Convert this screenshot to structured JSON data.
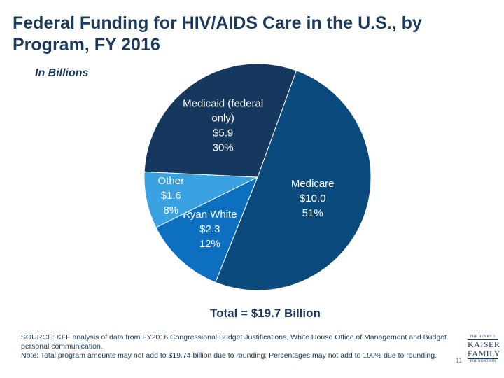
{
  "chart_data": {
    "type": "pie",
    "title": "Federal Funding for HIV/AIDS Care in the U.S., by Program, FY 2016",
    "subtitle": "In Billions",
    "slices": [
      {
        "name": "Medicare",
        "value": 10.0,
        "value_label": "$10.0",
        "percent_label": "51%",
        "color": "#0b4a7d"
      },
      {
        "name": "Ryan White",
        "value": 2.3,
        "value_label": "$2.3",
        "percent_label": "12%",
        "color": "#0c6fc0"
      },
      {
        "name": "Other",
        "value": 1.6,
        "value_label": "$1.6",
        "percent_label": "8%",
        "color": "#3aa2e0"
      },
      {
        "name": "Medicaid (federal only)",
        "value": 5.9,
        "value_label": "$5.9",
        "percent_label": "30%",
        "color": "#17385e"
      }
    ],
    "name_lines": {
      "Medicare": [
        "Medicare"
      ],
      "Ryan White": [
        "Ryan White"
      ],
      "Other": [
        "Other"
      ],
      "Medicaid (federal only)": [
        "Medicaid (federal",
        "only)"
      ]
    },
    "total_label": "Total = $19.7 Billion"
  },
  "source_lines": [
    "SOURCE: KFF analysis of data from FY2016 Congressional Budget Justifications, White House Office of Management and Budget",
    "personal communication.",
    "Note: Total program amounts may not add to $19.74 billion due to rounding; Percentages may not add to 100% due to rounding."
  ],
  "page_number": "11",
  "logo": {
    "line1": "THE HENRY J.",
    "line2": "KAISER",
    "line3": "FAMILY",
    "line4": "FOUNDATION"
  }
}
